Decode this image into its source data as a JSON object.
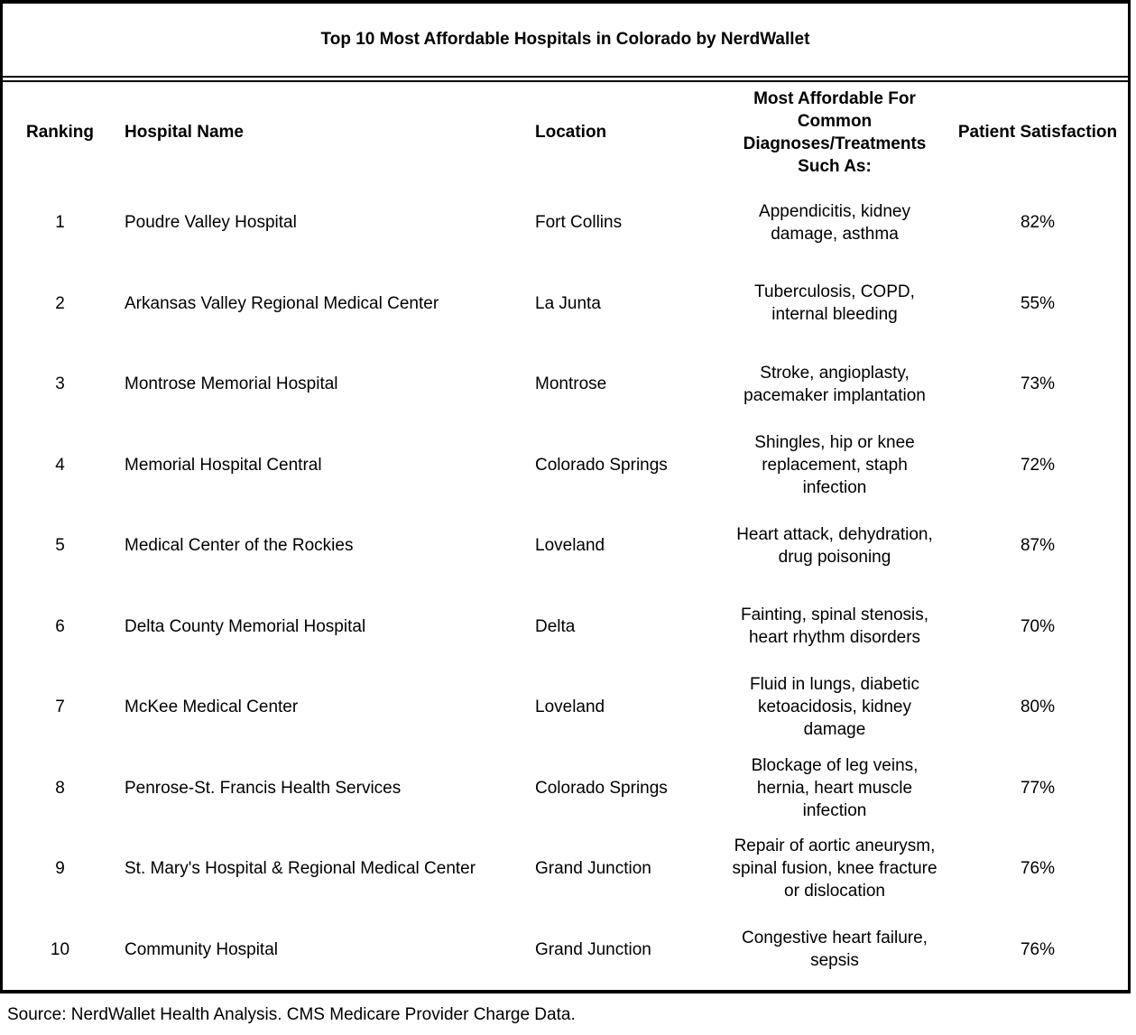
{
  "title": "Top 10 Most Affordable Hospitals in Colorado by NerdWallet",
  "columns": {
    "ranking": "Ranking",
    "hospital": "Hospital Name",
    "location": "Location",
    "diagnoses": "Most Affordable For\nCommon\nDiagnoses/Treatments\nSuch As:",
    "satisfaction": "Patient Satisfaction"
  },
  "rows": [
    {
      "ranking": "1",
      "hospital": "Poudre Valley Hospital",
      "location": "Fort Collins",
      "diagnoses": "Appendicitis, kidney\ndamage, asthma",
      "satisfaction": "82%"
    },
    {
      "ranking": "2",
      "hospital": "Arkansas Valley Regional Medical Center",
      "location": "La Junta",
      "diagnoses": "Tuberculosis, COPD,\ninternal bleeding",
      "satisfaction": "55%"
    },
    {
      "ranking": "3",
      "hospital": "Montrose Memorial Hospital",
      "location": "Montrose",
      "diagnoses": "Stroke, angioplasty,\npacemaker implantation",
      "satisfaction": "73%"
    },
    {
      "ranking": "4",
      "hospital": "Memorial Hospital Central",
      "location": "Colorado Springs",
      "diagnoses": "Shingles, hip or knee\nreplacement, staph\ninfection",
      "satisfaction": "72%"
    },
    {
      "ranking": "5",
      "hospital": "Medical Center of the Rockies",
      "location": "Loveland",
      "diagnoses": "Heart attack, dehydration,\ndrug poisoning",
      "satisfaction": "87%"
    },
    {
      "ranking": "6",
      "hospital": "Delta County Memorial Hospital",
      "location": "Delta",
      "diagnoses": "Fainting, spinal stenosis,\nheart rhythm disorders",
      "satisfaction": "70%"
    },
    {
      "ranking": "7",
      "hospital": "McKee Medical Center",
      "location": "Loveland",
      "diagnoses": "Fluid in lungs, diabetic\nketoacidosis, kidney\ndamage",
      "satisfaction": "80%"
    },
    {
      "ranking": "8",
      "hospital": "Penrose-St. Francis Health Services",
      "location": "Colorado Springs",
      "diagnoses": "Blockage of leg veins,\nhernia, heart muscle\ninfection",
      "satisfaction": "77%"
    },
    {
      "ranking": "9",
      "hospital": "St. Mary's Hospital & Regional Medical Center",
      "location": "Grand Junction",
      "diagnoses": "Repair of aortic aneurysm,\nspinal fusion, knee fracture\nor dislocation",
      "satisfaction": "76%"
    },
    {
      "ranking": "10",
      "hospital": "Community Hospital",
      "location": "Grand Junction",
      "diagnoses": "Congestive heart failure,\nsepsis",
      "satisfaction": "76%"
    }
  ],
  "footer": {
    "source": "Source: NerdWallet Health Analysis. CMS Medicare Provider Charge Data."
  }
}
